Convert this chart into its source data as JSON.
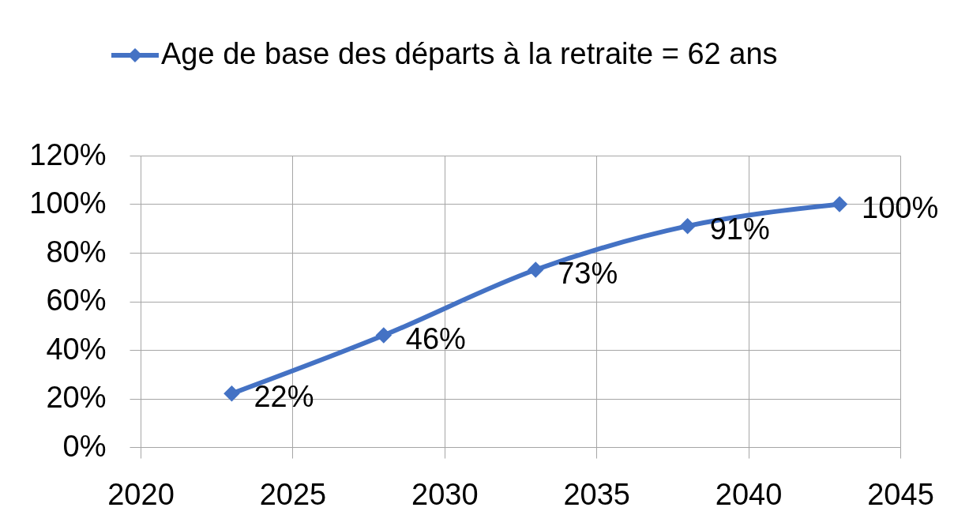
{
  "chart_data": {
    "type": "line",
    "x": [
      2023,
      2028,
      2033,
      2038,
      2043
    ],
    "series": [
      {
        "name": "Age de base des départs à la retraite = 62 ans",
        "color": "#4472c4",
        "values": [
          22,
          46,
          73,
          91,
          100
        ],
        "value_labels": [
          "22%",
          "46%",
          "73%",
          "91%",
          "100%"
        ]
      }
    ],
    "xlim": [
      2020,
      2045
    ],
    "xticks": [
      2020,
      2025,
      2030,
      2035,
      2040,
      2045
    ],
    "ylim": [
      0,
      120
    ],
    "yticks": [
      {
        "value": 0,
        "label": "0%"
      },
      {
        "value": 20,
        "label": "20%"
      },
      {
        "value": 40,
        "label": "40%"
      },
      {
        "value": 60,
        "label": "60%"
      },
      {
        "value": 80,
        "label": "80%"
      },
      {
        "value": 100,
        "label": "100%"
      },
      {
        "value": 120,
        "label": "120%"
      }
    ],
    "grid": true,
    "legend": "top",
    "marker": "diamond",
    "line_style": "solid"
  }
}
